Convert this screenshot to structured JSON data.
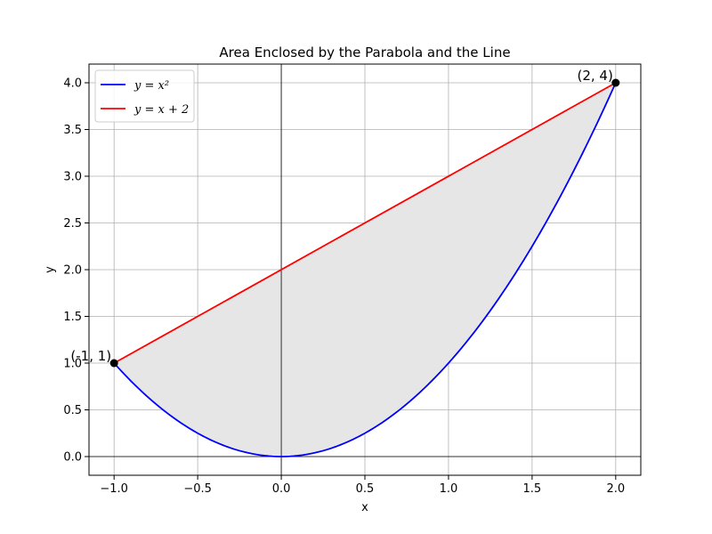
{
  "chart_data": {
    "type": "line",
    "title": "Area Enclosed by the Parabola and the Line",
    "xlabel": "x",
    "ylabel": "y",
    "xlim": [
      -1.15,
      2.15
    ],
    "ylim": [
      -0.2,
      4.2
    ],
    "x_ticks": [
      -1.0,
      -0.5,
      0.0,
      0.5,
      1.0,
      1.5,
      2.0
    ],
    "x_tick_labels": [
      "−1.0",
      "−0.5",
      "0.0",
      "0.5",
      "1.0",
      "1.5",
      "2.0"
    ],
    "y_ticks": [
      0.0,
      0.5,
      1.0,
      1.5,
      2.0,
      2.5,
      3.0,
      3.5,
      4.0
    ],
    "y_tick_labels": [
      "0.0",
      "0.5",
      "1.0",
      "1.5",
      "2.0",
      "2.5",
      "3.0",
      "3.5",
      "4.0"
    ],
    "grid": true,
    "legend_position": "top-left",
    "series": [
      {
        "name": "y = x²",
        "color": "#0000ff",
        "x": [
          -1.0,
          -0.75,
          -0.5,
          -0.25,
          0.0,
          0.25,
          0.5,
          0.75,
          1.0,
          1.25,
          1.5,
          1.75,
          2.0
        ],
        "y": [
          1.0,
          0.5625,
          0.25,
          0.0625,
          0.0,
          0.0625,
          0.25,
          0.5625,
          1.0,
          1.5625,
          2.25,
          3.0625,
          4.0
        ]
      },
      {
        "name": "y = x + 2",
        "color": "#ff0000",
        "x": [
          -1.0,
          2.0
        ],
        "y": [
          1.0,
          4.0
        ]
      }
    ],
    "shaded_region": {
      "between": [
        "y = x + 2",
        "y = x²"
      ],
      "x_range": [
        -1.0,
        2.0
      ],
      "color": "#e6e6e6"
    },
    "intersection_points": [
      {
        "x": -1.0,
        "y": 1.0,
        "label": "(-1, 1)"
      },
      {
        "x": 2.0,
        "y": 4.0,
        "label": "(2, 4)"
      }
    ]
  }
}
